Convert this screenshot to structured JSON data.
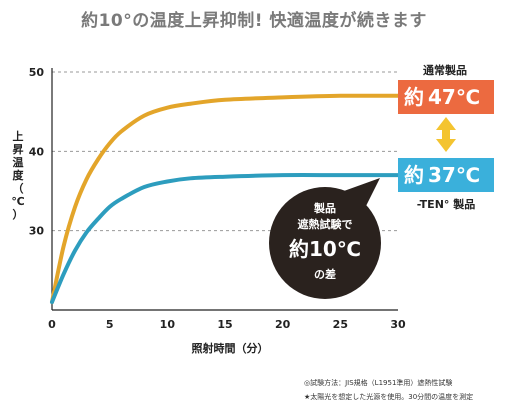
{
  "title": "約10°の温度上昇抑制! 快適温度が続きます",
  "colors": {
    "normal": "#e3a52a",
    "ten": "#2d9dbe",
    "normal_badge": "#ec6a40",
    "ten_badge": "#3ab0db",
    "arrow": "#f4c430",
    "bubble": "#2a221e"
  },
  "chart_data": {
    "type": "line",
    "title": "約10°の温度上昇抑制! 快適温度が続きます",
    "xlabel": "照射時間（分）",
    "ylabel": "上昇温度（℃）",
    "xlim": [
      0,
      30
    ],
    "ylim": [
      20,
      50
    ],
    "x_ticks": [
      "0",
      "5",
      "10",
      "15",
      "20",
      "25",
      "30"
    ],
    "y_ticks": [
      "30",
      "40",
      "50"
    ],
    "grid": "horizontal",
    "series": [
      {
        "name": "通常製品",
        "x": [
          0,
          1,
          2,
          3,
          4,
          5,
          6,
          8,
          10,
          12,
          15,
          20,
          25,
          30
        ],
        "y": [
          21,
          28,
          33,
          36.5,
          39,
          41,
          42.5,
          44.5,
          45.5,
          46,
          46.5,
          46.8,
          47,
          47
        ]
      },
      {
        "name": "-TEN° 製品",
        "x": [
          0,
          1,
          2,
          3,
          4,
          5,
          6,
          8,
          10,
          12,
          15,
          20,
          25,
          30
        ],
        "y": [
          21,
          24.5,
          27.5,
          29.8,
          31.5,
          33,
          34,
          35.5,
          36.2,
          36.6,
          36.8,
          37,
          37,
          37
        ]
      }
    ],
    "annotations": {
      "normal_badge": {
        "prefix": "約",
        "value": "47℃"
      },
      "ten_badge": {
        "prefix": "約",
        "value": "37℃"
      },
      "bubble": {
        "line1": "製品",
        "line2": "遮熱試験で",
        "big": "約10℃",
        "line4": "の差"
      }
    }
  },
  "footnotes": [
    "◎試験方法：JIS規格（L1951準用）遮熱性試験",
    "★太陽光を想定した光源を使用。30分間の温度を測定"
  ]
}
